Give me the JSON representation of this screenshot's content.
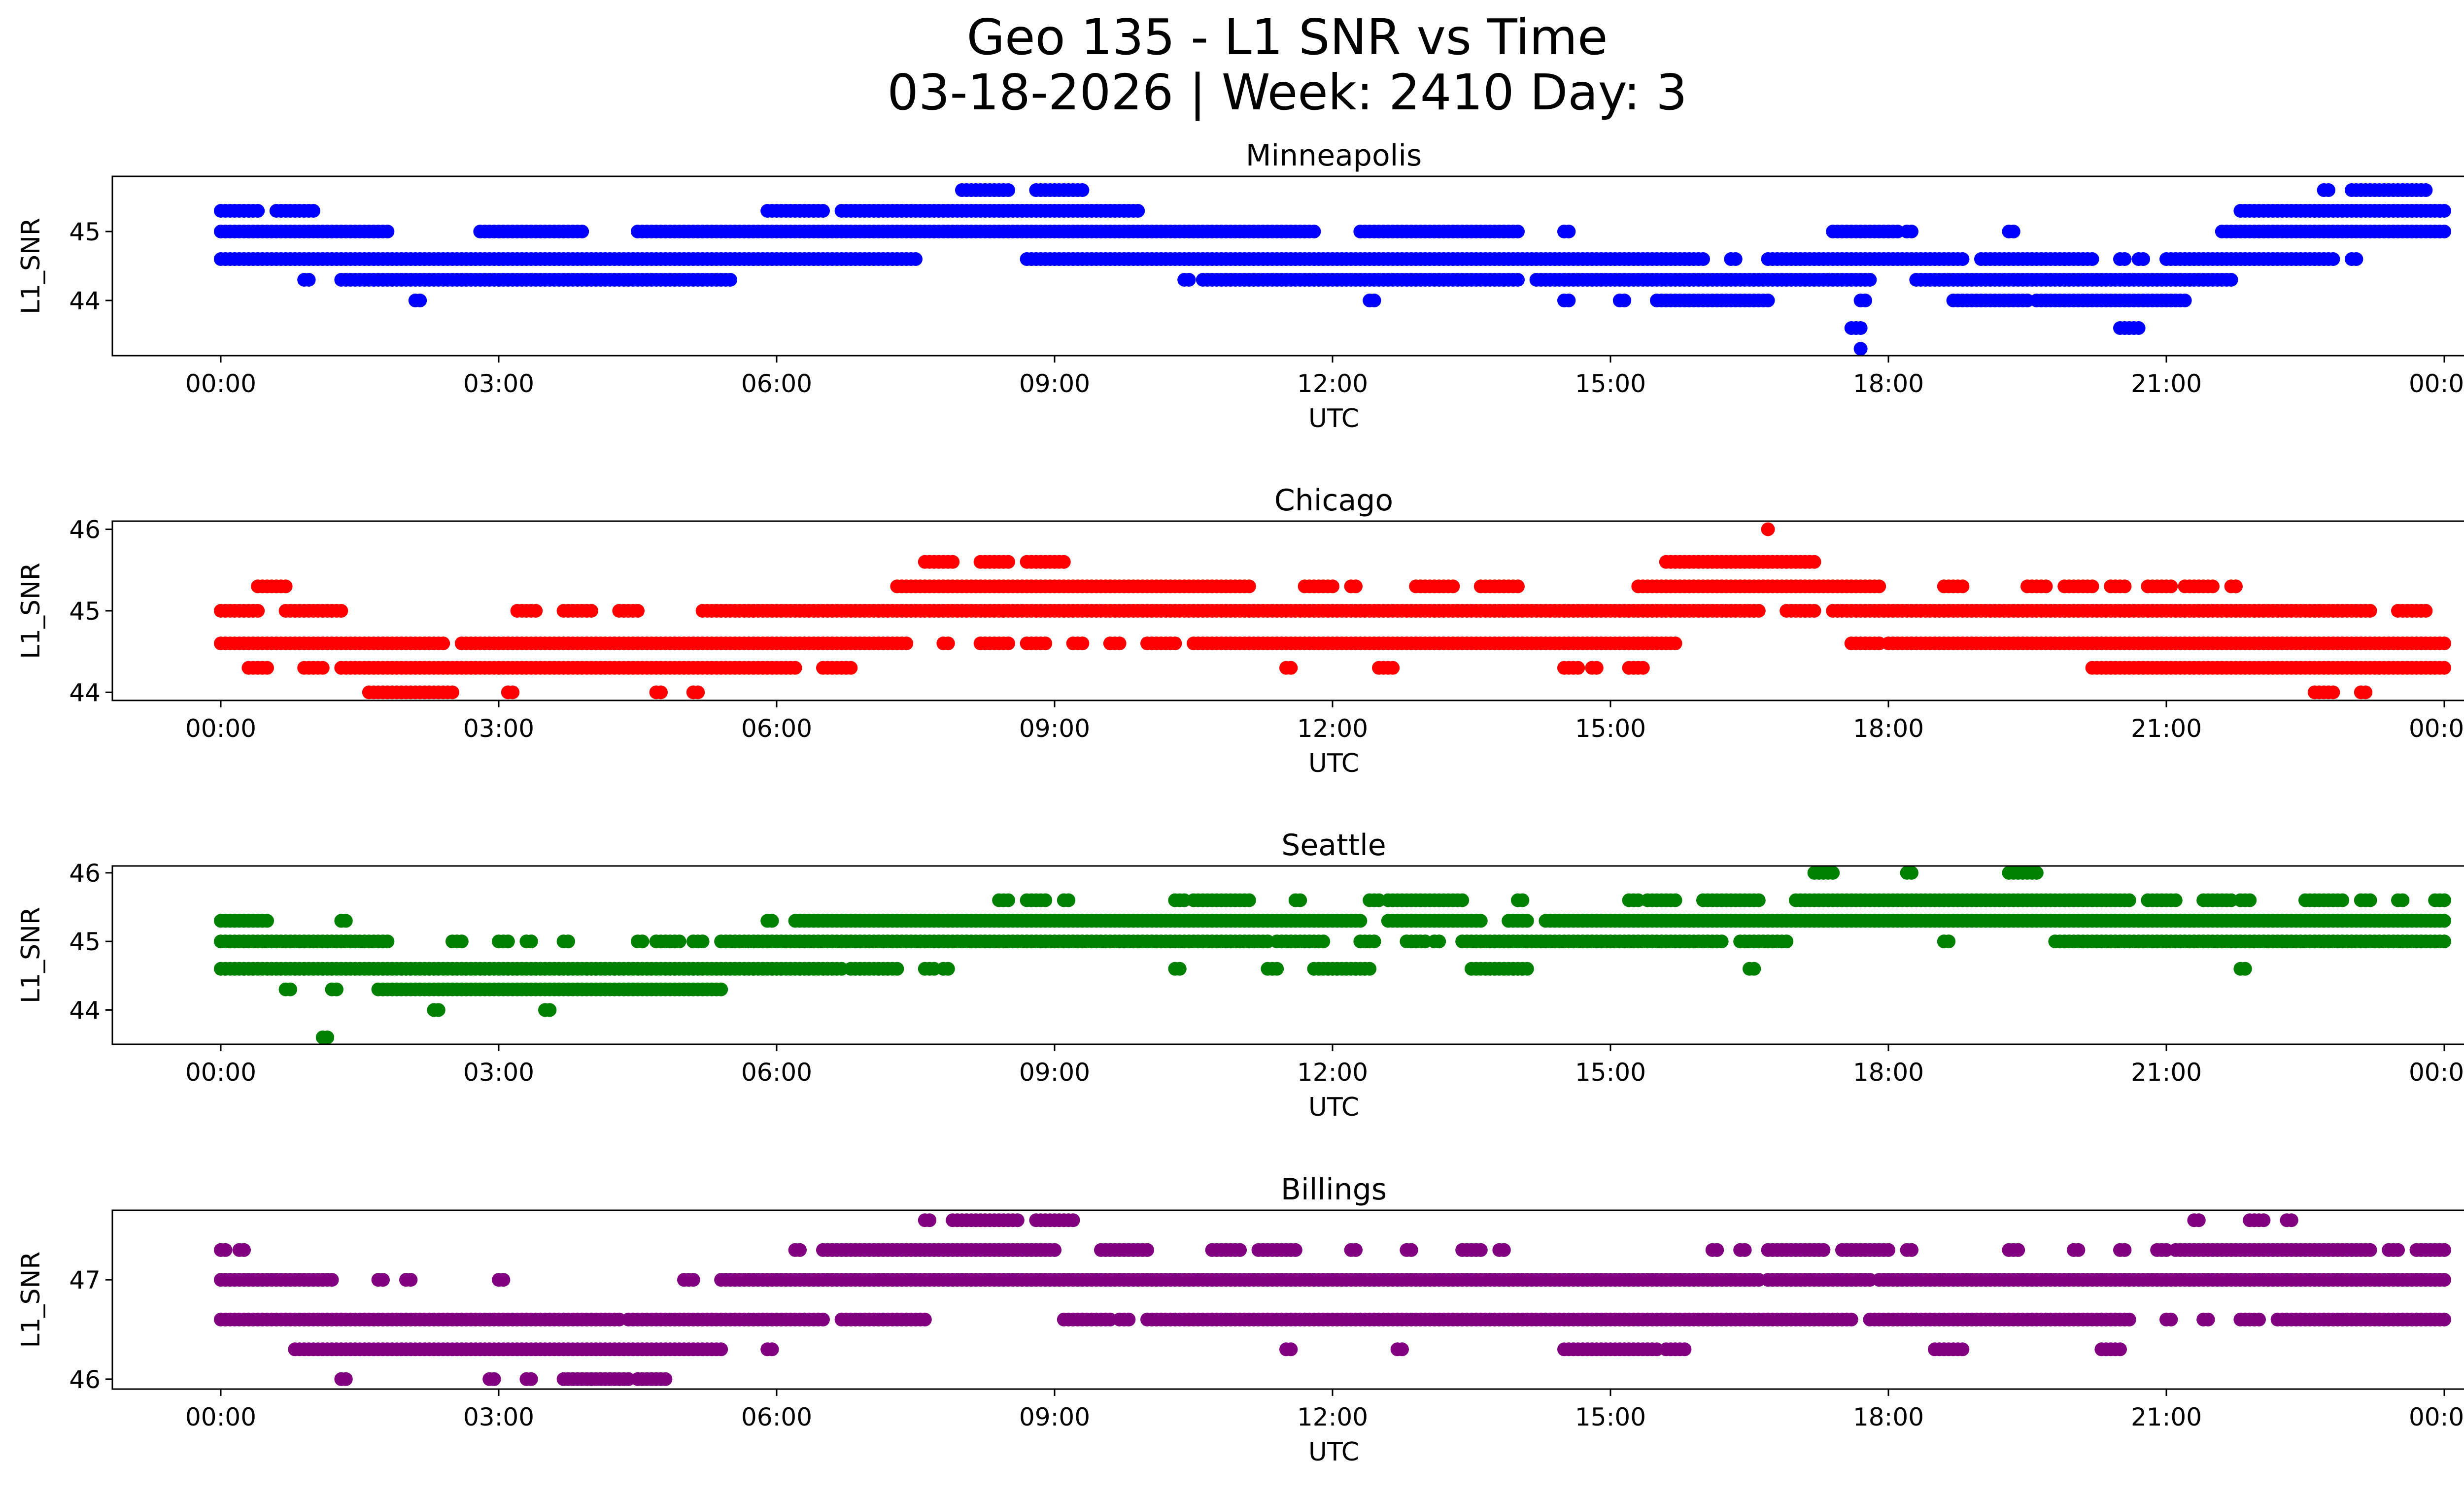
{
  "figure": {
    "title_line1": "Geo 135 - L1 SNR vs Time",
    "title_line2": "03-18-2026 | Week: 2410 Day: 3"
  },
  "chart_data": [
    {
      "type": "scatter",
      "title": "Minneapolis",
      "xlabel": "UTC",
      "ylabel": "L1_SNR",
      "color": "#0000ff",
      "xlim": [
        "00:00",
        "24:00"
      ],
      "ylim": [
        43.2,
        45.8
      ],
      "yticks": [
        44,
        45
      ],
      "xticks": [
        "00:00",
        "03:00",
        "06:00",
        "09:00",
        "12:00",
        "15:00",
        "18:00",
        "21:00",
        "00:00"
      ],
      "bands": [
        {
          "y": 45.6,
          "ranges": [
            [
              8.0,
              8.5
            ],
            [
              8.8,
              9.3
            ],
            [
              22.7,
              22.75
            ],
            [
              23.0,
              23.8
            ]
          ]
        },
        {
          "y": 45.3,
          "ranges": [
            [
              0.0,
              0.4
            ],
            [
              0.6,
              1.0
            ],
            [
              5.9,
              6.5
            ],
            [
              6.7,
              9.9
            ],
            [
              21.8,
              24.0
            ]
          ]
        },
        {
          "y": 45.0,
          "ranges": [
            [
              0.0,
              1.8
            ],
            [
              2.8,
              3.9
            ],
            [
              4.5,
              11.8
            ],
            [
              12.3,
              14.0
            ],
            [
              14.5,
              14.55
            ],
            [
              17.4,
              18.1
            ],
            [
              18.2,
              18.25
            ],
            [
              19.3,
              19.35
            ],
            [
              21.6,
              24.0
            ]
          ]
        },
        {
          "y": 44.6,
          "ranges": [
            [
              0.0,
              7.5
            ],
            [
              8.7,
              16.0
            ],
            [
              16.3,
              16.35
            ],
            [
              16.7,
              18.8
            ],
            [
              19.0,
              20.2
            ],
            [
              20.5,
              20.55
            ],
            [
              20.7,
              20.75
            ],
            [
              21.0,
              22.8
            ],
            [
              23.0,
              23.05
            ]
          ]
        },
        {
          "y": 44.3,
          "ranges": [
            [
              0.9,
              0.95
            ],
            [
              1.3,
              5.5
            ],
            [
              10.4,
              10.45
            ],
            [
              10.6,
              14.0
            ],
            [
              14.2,
              17.8
            ],
            [
              18.3,
              21.7
            ]
          ]
        },
        {
          "y": 44.0,
          "ranges": [
            [
              2.1,
              2.15
            ],
            [
              12.4,
              12.45
            ],
            [
              14.5,
              14.55
            ],
            [
              15.1,
              15.15
            ],
            [
              15.5,
              16.7
            ],
            [
              17.7,
              17.75
            ],
            [
              18.7,
              19.5
            ],
            [
              19.6,
              21.2
            ]
          ]
        },
        {
          "y": 43.6,
          "ranges": [
            [
              17.6,
              17.7
            ],
            [
              20.5,
              20.7
            ]
          ]
        },
        {
          "y": 43.3,
          "ranges": [
            [
              17.7,
              17.72
            ]
          ]
        }
      ]
    },
    {
      "type": "scatter",
      "title": "Chicago",
      "xlabel": "UTC",
      "ylabel": "L1_SNR",
      "color": "#ff0000",
      "xlim": [
        "00:00",
        "24:00"
      ],
      "ylim": [
        43.9,
        46.1
      ],
      "yticks": [
        44,
        45,
        46
      ],
      "xticks": [
        "00:00",
        "03:00",
        "06:00",
        "09:00",
        "12:00",
        "15:00",
        "18:00",
        "21:00",
        "00:00"
      ],
      "bands": [
        {
          "y": 46.0,
          "ranges": [
            [
              16.7,
              16.72
            ]
          ]
        },
        {
          "y": 45.6,
          "ranges": [
            [
              7.6,
              7.9
            ],
            [
              8.2,
              8.5
            ],
            [
              8.7,
              9.1
            ],
            [
              15.6,
              17.2
            ]
          ]
        },
        {
          "y": 45.3,
          "ranges": [
            [
              0.4,
              0.7
            ],
            [
              7.3,
              11.1
            ],
            [
              11.7,
              12.0
            ],
            [
              12.2,
              12.25
            ],
            [
              12.9,
              13.3
            ],
            [
              13.6,
              14.0
            ],
            [
              15.3,
              17.9
            ],
            [
              18.6,
              18.8
            ],
            [
              19.5,
              19.7
            ],
            [
              19.9,
              20.2
            ],
            [
              20.4,
              20.55
            ],
            [
              20.8,
              21.05
            ],
            [
              21.2,
              21.5
            ],
            [
              21.7,
              21.75
            ]
          ]
        },
        {
          "y": 45.0,
          "ranges": [
            [
              0.0,
              0.4
            ],
            [
              0.7,
              1.3
            ],
            [
              3.2,
              3.4
            ],
            [
              3.7,
              4.0
            ],
            [
              4.3,
              4.5
            ],
            [
              5.2,
              16.6
            ],
            [
              16.9,
              17.2
            ],
            [
              17.4,
              23.2
            ],
            [
              23.5,
              23.8
            ]
          ]
        },
        {
          "y": 44.6,
          "ranges": [
            [
              0.0,
              2.4
            ],
            [
              2.6,
              7.4
            ],
            [
              7.8,
              7.85
            ],
            [
              8.2,
              8.5
            ],
            [
              8.7,
              8.9
            ],
            [
              9.2,
              9.3
            ],
            [
              9.6,
              9.7
            ],
            [
              10.0,
              10.3
            ],
            [
              10.5,
              15.7
            ],
            [
              17.6,
              17.9
            ],
            [
              18.0,
              24.0
            ]
          ]
        },
        {
          "y": 44.3,
          "ranges": [
            [
              0.3,
              0.5
            ],
            [
              0.9,
              1.1
            ],
            [
              1.3,
              6.2
            ],
            [
              6.5,
              6.8
            ],
            [
              11.5,
              11.55
            ],
            [
              12.5,
              12.65
            ],
            [
              14.5,
              14.65
            ],
            [
              14.8,
              14.85
            ],
            [
              15.2,
              15.35
            ],
            [
              20.2,
              24.0
            ]
          ]
        },
        {
          "y": 44.0,
          "ranges": [
            [
              1.6,
              2.5
            ],
            [
              3.1,
              3.15
            ],
            [
              4.7,
              4.75
            ],
            [
              5.1,
              5.15
            ],
            [
              22.6,
              22.8
            ],
            [
              23.1,
              23.15
            ]
          ]
        }
      ]
    },
    {
      "type": "scatter",
      "title": "Seattle",
      "xlabel": "UTC",
      "ylabel": "L1_SNR",
      "color": "#008000",
      "xlim": [
        "00:00",
        "24:00"
      ],
      "ylim": [
        43.5,
        46.1
      ],
      "yticks": [
        44,
        45,
        46
      ],
      "xticks": [
        "00:00",
        "03:00",
        "06:00",
        "09:00",
        "12:00",
        "15:00",
        "18:00",
        "21:00",
        "00:00"
      ],
      "bands": [
        {
          "y": 46.0,
          "ranges": [
            [
              17.2,
              17.4
            ],
            [
              18.2,
              18.25
            ],
            [
              19.3,
              19.6
            ]
          ]
        },
        {
          "y": 45.6,
          "ranges": [
            [
              8.4,
              8.5
            ],
            [
              8.7,
              8.9
            ],
            [
              9.1,
              9.15
            ],
            [
              10.3,
              10.4
            ],
            [
              10.5,
              11.1
            ],
            [
              11.6,
              11.65
            ],
            [
              12.4,
              12.5
            ],
            [
              12.6,
              13.4
            ],
            [
              14.0,
              14.05
            ],
            [
              15.2,
              15.3
            ],
            [
              15.4,
              15.7
            ],
            [
              16.0,
              16.6
            ],
            [
              17.0,
              20.6
            ],
            [
              20.8,
              21.1
            ],
            [
              21.4,
              21.7
            ],
            [
              21.8,
              21.9
            ],
            [
              22.5,
              22.9
            ],
            [
              23.1,
              23.2
            ],
            [
              23.5,
              23.55
            ],
            [
              23.9,
              24.0
            ]
          ]
        },
        {
          "y": 45.3,
          "ranges": [
            [
              0.0,
              0.5
            ],
            [
              1.3,
              1.35
            ],
            [
              5.9,
              5.95
            ],
            [
              6.2,
              12.3
            ],
            [
              12.6,
              13.6
            ],
            [
              13.9,
              14.1
            ],
            [
              14.3,
              24.0
            ]
          ]
        },
        {
          "y": 45.0,
          "ranges": [
            [
              0.0,
              1.8
            ],
            [
              2.5,
              2.6
            ],
            [
              3.0,
              3.1
            ],
            [
              3.3,
              3.35
            ],
            [
              3.7,
              3.75
            ],
            [
              4.5,
              4.55
            ],
            [
              4.7,
              4.95
            ],
            [
              5.1,
              5.2
            ],
            [
              5.4,
              11.3
            ],
            [
              11.4,
              11.9
            ],
            [
              12.3,
              12.45
            ],
            [
              12.8,
              13.0
            ],
            [
              13.1,
              13.15
            ],
            [
              13.4,
              16.2
            ],
            [
              16.4,
              16.9
            ],
            [
              18.6,
              18.65
            ],
            [
              19.8,
              24.0
            ]
          ]
        },
        {
          "y": 44.6,
          "ranges": [
            [
              0.0,
              6.7
            ],
            [
              6.8,
              7.3
            ],
            [
              7.6,
              7.7
            ],
            [
              7.8,
              7.85
            ],
            [
              10.3,
              10.35
            ],
            [
              11.3,
              11.4
            ],
            [
              11.8,
              12.4
            ],
            [
              13.5,
              14.1
            ],
            [
              16.5,
              16.55
            ],
            [
              21.8,
              21.85
            ]
          ]
        },
        {
          "y": 44.3,
          "ranges": [
            [
              0.7,
              0.75
            ],
            [
              1.2,
              1.25
            ],
            [
              1.7,
              5.4
            ]
          ]
        },
        {
          "y": 44.0,
          "ranges": [
            [
              2.3,
              2.35
            ],
            [
              3.5,
              3.55
            ]
          ]
        },
        {
          "y": 43.6,
          "ranges": [
            [
              1.1,
              1.15
            ]
          ]
        }
      ]
    },
    {
      "type": "scatter",
      "title": "Billings",
      "xlabel": "UTC",
      "ylabel": "L1_SNR",
      "color": "#800080",
      "xlim": [
        "00:00",
        "24:00"
      ],
      "ylim": [
        45.9,
        47.7
      ],
      "yticks": [
        46,
        47
      ],
      "xticks": [
        "00:00",
        "03:00",
        "06:00",
        "09:00",
        "12:00",
        "15:00",
        "18:00",
        "21:00",
        "00:00"
      ],
      "bands": [
        {
          "y": 47.6,
          "ranges": [
            [
              7.6,
              7.65
            ],
            [
              7.9,
              8.6
            ],
            [
              8.8,
              9.2
            ],
            [
              21.3,
              21.35
            ],
            [
              21.9,
              22.05
            ],
            [
              22.3,
              22.35
            ]
          ]
        },
        {
          "y": 47.3,
          "ranges": [
            [
              0.0,
              0.05
            ],
            [
              0.2,
              0.25
            ],
            [
              6.2,
              6.25
            ],
            [
              6.5,
              9.0
            ],
            [
              9.5,
              10.0
            ],
            [
              10.7,
              11.0
            ],
            [
              11.2,
              11.6
            ],
            [
              12.2,
              12.25
            ],
            [
              12.8,
              12.85
            ],
            [
              13.4,
              13.6
            ],
            [
              13.8,
              13.85
            ],
            [
              16.1,
              16.15
            ],
            [
              16.4,
              16.45
            ],
            [
              16.7,
              17.3
            ],
            [
              17.5,
              18.0
            ],
            [
              18.2,
              18.25
            ],
            [
              19.3,
              19.4
            ],
            [
              20.0,
              20.05
            ],
            [
              20.5,
              20.55
            ],
            [
              20.9,
              21.0
            ],
            [
              21.1,
              23.2
            ],
            [
              23.4,
              23.5
            ],
            [
              23.7,
              24.0
            ]
          ]
        },
        {
          "y": 47.0,
          "ranges": [
            [
              0.0,
              1.2
            ],
            [
              1.7,
              1.75
            ],
            [
              2.0,
              2.05
            ],
            [
              3.0,
              3.05
            ],
            [
              5.0,
              5.1
            ],
            [
              5.4,
              16.6
            ],
            [
              16.7,
              17.8
            ],
            [
              17.9,
              18.6
            ],
            [
              18.6,
              24.0
            ]
          ]
        },
        {
          "y": 46.6,
          "ranges": [
            [
              0.0,
              4.3
            ],
            [
              4.4,
              6.5
            ],
            [
              6.7,
              7.6
            ],
            [
              9.1,
              9.6
            ],
            [
              9.7,
              9.8
            ],
            [
              10.0,
              17.6
            ],
            [
              17.8,
              20.6
            ],
            [
              21.0,
              21.05
            ],
            [
              21.4,
              21.45
            ],
            [
              21.8,
              22.0
            ],
            [
              22.2,
              24.0
            ]
          ]
        },
        {
          "y": 46.3,
          "ranges": [
            [
              0.8,
              5.4
            ],
            [
              5.9,
              5.95
            ],
            [
              11.5,
              11.55
            ],
            [
              12.7,
              12.75
            ],
            [
              14.5,
              15.5
            ],
            [
              15.6,
              15.8
            ],
            [
              18.5,
              18.8
            ],
            [
              20.3,
              20.5
            ]
          ]
        },
        {
          "y": 46.0,
          "ranges": [
            [
              1.3,
              1.35
            ],
            [
              2.9,
              2.95
            ],
            [
              3.3,
              3.35
            ],
            [
              3.7,
              4.4
            ],
            [
              4.5,
              4.8
            ]
          ]
        }
      ]
    }
  ]
}
